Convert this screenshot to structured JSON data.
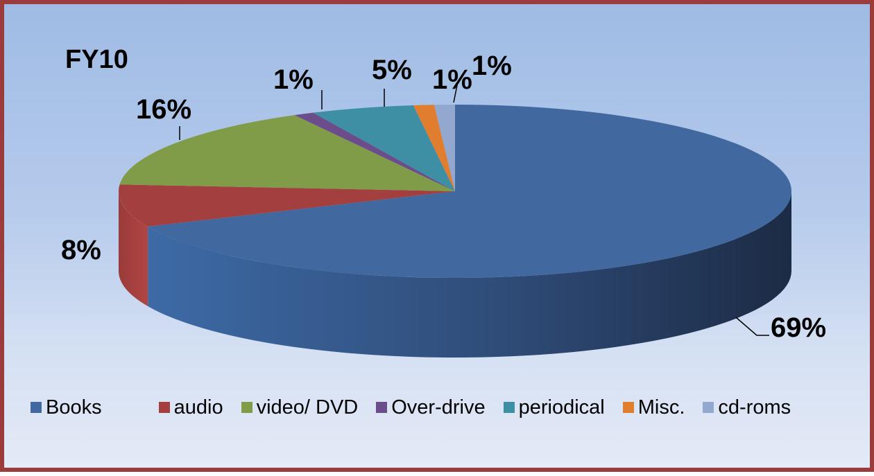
{
  "chart_data": {
    "type": "pie",
    "title": "FY10",
    "categories": [
      "Books",
      "audio",
      "video/ DVD",
      "Over-drive",
      "periodical",
      "Misc.",
      "cd-roms"
    ],
    "values": [
      69,
      8,
      16,
      1,
      5,
      1,
      1
    ],
    "labels": [
      "69%",
      "8%",
      "16%",
      "1%",
      "5%",
      "1%",
      "1%"
    ],
    "colors": [
      "#4169a0",
      "#a33f3e",
      "#809c48",
      "#6b4d8c",
      "#3e8fa3",
      "#e07d2f",
      "#92a8ce"
    ],
    "legend_position": "bottom",
    "style": "3d"
  }
}
